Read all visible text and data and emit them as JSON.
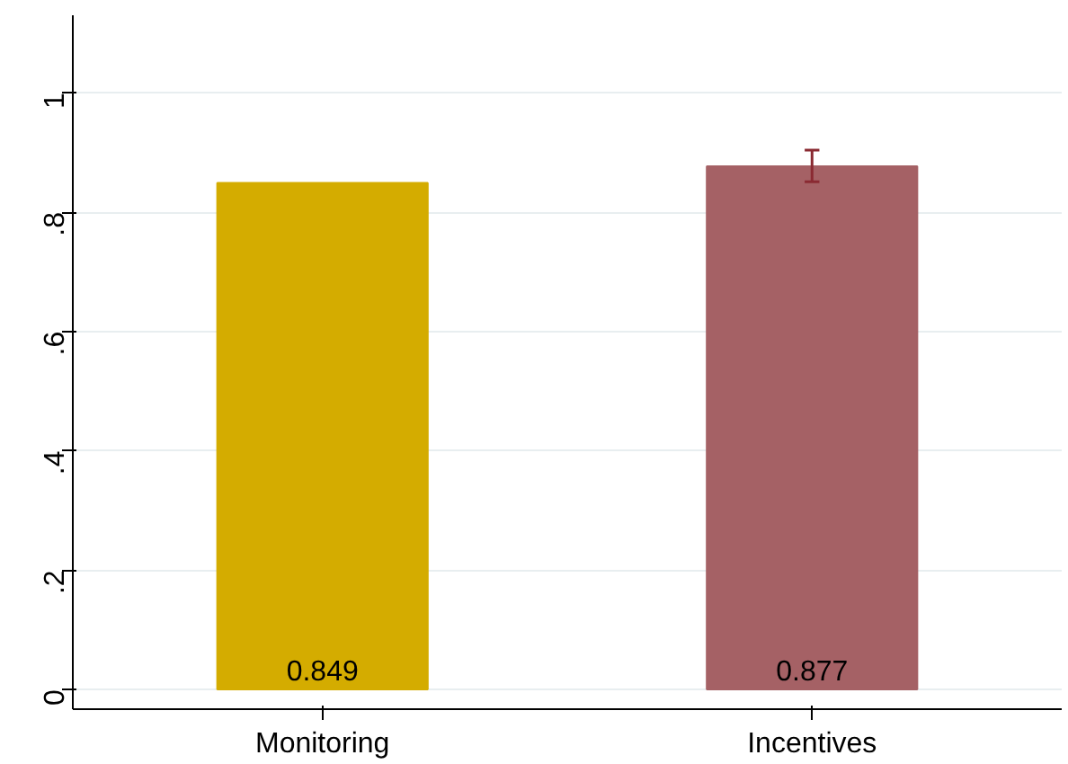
{
  "chart_data": {
    "type": "bar",
    "categories": [
      "Monitoring",
      "Incentives"
    ],
    "values": [
      0.849,
      0.877
    ],
    "colors": [
      "#d4ac00",
      "#a56165"
    ],
    "errors": [
      null,
      [
        0.851,
        0.904
      ]
    ],
    "ylim": [
      -0.033,
      1.13
    ],
    "yticks": [
      0,
      {
        "value": 0.2,
        "label": ".2"
      },
      {
        "value": 0.4,
        "label": ".4"
      },
      {
        "value": 0.6,
        "label": ".6"
      },
      {
        "value": 0.8,
        "label": ".8"
      },
      1
    ],
    "grid": "y",
    "data_labels": true
  }
}
